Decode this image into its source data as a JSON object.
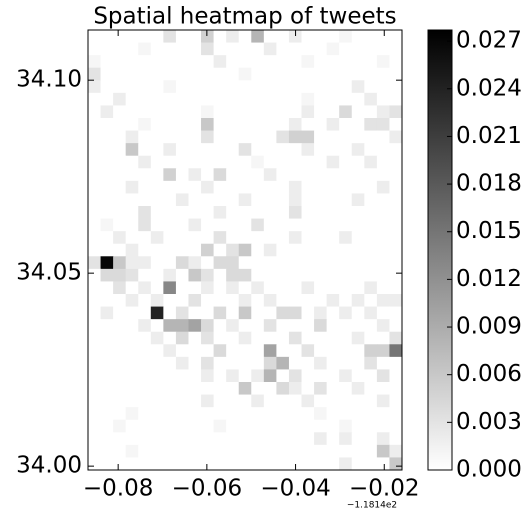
{
  "chart_data": {
    "type": "heatmap",
    "title": "Spatial heatmap of tweets",
    "x_offset_label": "−1.1814e2",
    "colormap": "gray_r",
    "xlim": [
      -0.0868,
      -0.016
    ],
    "ylim": [
      33.999,
      34.113
    ],
    "xticks": [
      {
        "value": -0.08,
        "label": "−0.08"
      },
      {
        "value": -0.06,
        "label": "−0.06"
      },
      {
        "value": -0.04,
        "label": "−0.04"
      },
      {
        "value": -0.02,
        "label": "−0.02"
      }
    ],
    "yticks": [
      {
        "value": 34.0,
        "label": "34.00"
      },
      34.05,
      {
        "value": 34.1,
        "label": "34.10"
      }
    ],
    "clim": [
      0,
      0.0277
    ],
    "cticks": [
      {
        "value": 0,
        "label": "0.000"
      },
      {
        "value": 0.003,
        "label": "0.003"
      },
      {
        "value": 0.006,
        "label": "0.006"
      },
      {
        "value": 0.009,
        "label": "0.009"
      },
      {
        "value": 0.012,
        "label": "0.012"
      },
      {
        "value": 0.015,
        "label": "0.015"
      },
      {
        "value": 0.018,
        "label": "0.018"
      },
      {
        "value": 0.021,
        "label": "0.021"
      },
      {
        "value": 0.024,
        "label": "0.024"
      },
      {
        "value": 0.027,
        "label": "0.027"
      }
    ],
    "z": [
      [
        0,
        0,
        0,
        0,
        0,
        0,
        0.003,
        0,
        0,
        0.005,
        0,
        0.002,
        0,
        0.008,
        0,
        0,
        0.002,
        0,
        0,
        0,
        0.001,
        0,
        0,
        0,
        0
      ],
      [
        0,
        0,
        0,
        0,
        0.001,
        0,
        0,
        0,
        0,
        0.003,
        0,
        0,
        0,
        0,
        0.002,
        0,
        0,
        0,
        0,
        0.001,
        0,
        0,
        0,
        0,
        0
      ],
      [
        0.001,
        0,
        0,
        0,
        0,
        0,
        0,
        0,
        0,
        0,
        0.002,
        0,
        0,
        0,
        0,
        0,
        0,
        0.001,
        0,
        0,
        0,
        0,
        0,
        0.001,
        0
      ],
      [
        0.003,
        0,
        0,
        0,
        0,
        0,
        0,
        0,
        0,
        0,
        0,
        0,
        0.001,
        0,
        0,
        0,
        0,
        0,
        0,
        0,
        0,
        0,
        0,
        0,
        0
      ],
      [
        0.002,
        0,
        0,
        0,
        0,
        0,
        0.001,
        0,
        0,
        0,
        0,
        0,
        0,
        0,
        0,
        0,
        0,
        0,
        0,
        0,
        0,
        0.002,
        0,
        0,
        0
      ],
      [
        0,
        0,
        0.002,
        0,
        0,
        0,
        0,
        0,
        0,
        0,
        0,
        0,
        0,
        0,
        0,
        0,
        0,
        0.001,
        0,
        0,
        0,
        0,
        0.002,
        0,
        0
      ],
      [
        0,
        0.002,
        0,
        0,
        0,
        0,
        0,
        0,
        0,
        0.001,
        0,
        0,
        0,
        0,
        0,
        0,
        0,
        0.002,
        0,
        0,
        0.004,
        0,
        0,
        0.002,
        0.003
      ],
      [
        0,
        0,
        0,
        0,
        0.001,
        0,
        0,
        0,
        0,
        0.006,
        0,
        0,
        0,
        0,
        0,
        0,
        0.002,
        0,
        0,
        0.002,
        0,
        0,
        0.003,
        0.003,
        0
      ],
      [
        0,
        0,
        0,
        0.002,
        0,
        0,
        0,
        0,
        0,
        0.003,
        0,
        0,
        0,
        0,
        0,
        0.003,
        0.005,
        0.005,
        0,
        0,
        0,
        0,
        0,
        0,
        0.002
      ],
      [
        0,
        0,
        0,
        0.006,
        0,
        0,
        0.002,
        0,
        0,
        0,
        0,
        0,
        0.003,
        0,
        0,
        0,
        0,
        0.002,
        0,
        0,
        0,
        0.002,
        0,
        0,
        0
      ],
      [
        0,
        0,
        0,
        0,
        0.002,
        0,
        0,
        0,
        0,
        0,
        0,
        0,
        0,
        0.001,
        0,
        0,
        0,
        0,
        0,
        0.002,
        0,
        0,
        0.002,
        0,
        0
      ],
      [
        0,
        0,
        0,
        0,
        0,
        0,
        0.005,
        0,
        0.002,
        0,
        0.004,
        0,
        0,
        0,
        0.002,
        0,
        0,
        0,
        0,
        0,
        0,
        0,
        0,
        0,
        0
      ],
      [
        0,
        0,
        0,
        0.002,
        0,
        0,
        0,
        0,
        0,
        0.002,
        0,
        0,
        0,
        0,
        0,
        0,
        0.002,
        0,
        0,
        0,
        0,
        0,
        0,
        0.002,
        0
      ],
      [
        0,
        0,
        0,
        0,
        0,
        0,
        0,
        0.002,
        0,
        0,
        0,
        0,
        0.002,
        0,
        0,
        0,
        0.002,
        0,
        0,
        0,
        0,
        0.002,
        0,
        0,
        0
      ],
      [
        0,
        0,
        0,
        0,
        0.003,
        0,
        0,
        0,
        0,
        0,
        0.002,
        0,
        0,
        0,
        0,
        0,
        0.003,
        0,
        0,
        0,
        0,
        0,
        0,
        0,
        0
      ],
      [
        0,
        0.001,
        0,
        0,
        0.003,
        0,
        0,
        0,
        0.002,
        0,
        0,
        0,
        0,
        0.003,
        0,
        0,
        0,
        0,
        0,
        0,
        0,
        0,
        0,
        0,
        0
      ],
      [
        0,
        0,
        0.002,
        0,
        0,
        0.002,
        0,
        0,
        0,
        0,
        0.003,
        0,
        0,
        0,
        0,
        0,
        0.002,
        0,
        0,
        0,
        0.002,
        0,
        0,
        0,
        0
      ],
      [
        0,
        0,
        0,
        0.002,
        0,
        0,
        0,
        0,
        0,
        0.005,
        0,
        0.003,
        0.006,
        0,
        0.002,
        0,
        0,
        0,
        0,
        0,
        0,
        0,
        0,
        0,
        0
      ],
      [
        0.003,
        0.027,
        0.006,
        0.002,
        0.002,
        0,
        0,
        0.004,
        0.002,
        0,
        0.004,
        0.004,
        0,
        0,
        0,
        0,
        0,
        0,
        0,
        0,
        0,
        0,
        0,
        0,
        0
      ],
      [
        0,
        0.004,
        0.004,
        0.003,
        0,
        0,
        0.002,
        0,
        0.006,
        0.003,
        0,
        0.004,
        0.004,
        0,
        0,
        0,
        0,
        0,
        0,
        0,
        0,
        0,
        0,
        0,
        0
      ],
      [
        0,
        0,
        0.003,
        0,
        0.002,
        0,
        0.013,
        0,
        0,
        0.002,
        0,
        0.002,
        0,
        0.002,
        0,
        0,
        0,
        0.002,
        0,
        0,
        0,
        0,
        0.002,
        0,
        0
      ],
      [
        0,
        0,
        0,
        0.002,
        0,
        0.002,
        0,
        0,
        0.003,
        0,
        0,
        0,
        0.002,
        0,
        0.002,
        0,
        0,
        0,
        0,
        0.002,
        0,
        0.002,
        0,
        0.002,
        0.002
      ],
      [
        0,
        0.002,
        0,
        0,
        0,
        0.024,
        0,
        0.003,
        0,
        0,
        0.004,
        0,
        0.006,
        0,
        0,
        0.004,
        0.004,
        0,
        0.002,
        0,
        0.002,
        0,
        0.002,
        0,
        0
      ],
      [
        0,
        0,
        0,
        0,
        0.002,
        0,
        0.008,
        0.008,
        0.01,
        0.004,
        0,
        0.002,
        0,
        0,
        0.003,
        0,
        0,
        0,
        0.004,
        0,
        0,
        0,
        0,
        0.002,
        0
      ],
      [
        0,
        0,
        0,
        0,
        0,
        0.002,
        0,
        0.004,
        0,
        0.003,
        0,
        0,
        0.002,
        0,
        0,
        0,
        0.003,
        0,
        0,
        0,
        0,
        0.002,
        0,
        0,
        0.003
      ],
      [
        0,
        0,
        0,
        0,
        0,
        0,
        0.002,
        0,
        0,
        0,
        0.004,
        0,
        0,
        0,
        0.01,
        0,
        0,
        0.003,
        0,
        0,
        0,
        0,
        0.005,
        0.005,
        0.015
      ],
      [
        0,
        0,
        0,
        0,
        0,
        0,
        0,
        0.002,
        0,
        0.003,
        0,
        0,
        0,
        0,
        0.004,
        0.008,
        0,
        0,
        0.002,
        0,
        0,
        0,
        0.003,
        0,
        0
      ],
      [
        0,
        0,
        0,
        0,
        0,
        0,
        0,
        0,
        0,
        0.002,
        0,
        0.002,
        0,
        0.002,
        0.008,
        0,
        0.003,
        0,
        0,
        0,
        0.002,
        0,
        0,
        0.003,
        0
      ],
      [
        0,
        0,
        0,
        0,
        0,
        0,
        0,
        0,
        0,
        0,
        0,
        0,
        0.006,
        0,
        0,
        0.004,
        0.002,
        0,
        0.003,
        0,
        0,
        0.002,
        0,
        0,
        0
      ],
      [
        0,
        0,
        0,
        0,
        0,
        0,
        0,
        0,
        0,
        0.002,
        0,
        0,
        0,
        0.002,
        0,
        0,
        0,
        0.002,
        0,
        0,
        0,
        0,
        0,
        0.002,
        0
      ],
      [
        0,
        0,
        0,
        0.001,
        0,
        0,
        0,
        0,
        0,
        0,
        0,
        0,
        0,
        0,
        0,
        0,
        0,
        0,
        0.001,
        0,
        0,
        0,
        0,
        0,
        0
      ],
      [
        0,
        0,
        0.001,
        0,
        0,
        0,
        0,
        0,
        0,
        0,
        0.001,
        0,
        0,
        0,
        0,
        0,
        0,
        0,
        0,
        0,
        0.001,
        0,
        0,
        0,
        0
      ],
      [
        0,
        0,
        0,
        0,
        0,
        0,
        0,
        0,
        0,
        0,
        0,
        0,
        0,
        0,
        0,
        0,
        0,
        0,
        0.002,
        0,
        0.002,
        0,
        0,
        0.002,
        0
      ],
      [
        0,
        0,
        0,
        0.001,
        0,
        0,
        0,
        0,
        0,
        0,
        0,
        0,
        0,
        0,
        0,
        0,
        0,
        0,
        0,
        0,
        0,
        0,
        0,
        0.006,
        0.002
      ],
      [
        0,
        0,
        0,
        0,
        0,
        0,
        0,
        0,
        0,
        0,
        0,
        0,
        0,
        0,
        0,
        0,
        0,
        0,
        0,
        0,
        0.002,
        0,
        0,
        0,
        0.006
      ]
    ]
  }
}
